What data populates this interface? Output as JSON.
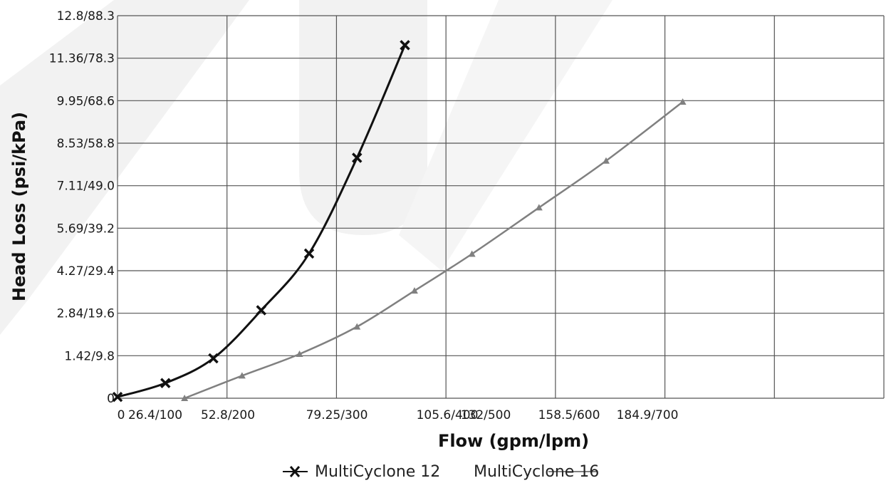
{
  "chart_data": {
    "type": "line",
    "xlabel": "Flow (gpm/lpm)",
    "ylabel": "Head Loss (psi/kPa)",
    "x_tick_labels": [
      "0",
      "26.4/100",
      "52.8/200",
      "79.25/300",
      "105.6/400",
      "132/500",
      "158.5/600",
      "184.9/700"
    ],
    "y_tick_labels": [
      "0",
      "1.42/9.8",
      "2.84/19.6",
      "4.27/29.4",
      "5.69/39.2",
      "7.11/49.0",
      "8.53/58.8",
      "9.95/68.6",
      "11.36/78.3",
      "12.8/88.3"
    ],
    "xlim": [
      0,
      800
    ],
    "ylim": [
      0,
      88.3
    ],
    "x_unit": "lpm",
    "y_unit": "kPa",
    "grid": true,
    "legend_position": "bottom",
    "series": [
      {
        "name": "MultiCyclone 12",
        "color": "#111111",
        "marker": "x",
        "x": [
          0,
          50,
          100,
          150,
          200,
          250,
          300
        ],
        "y": [
          0.3,
          3.5,
          9.2,
          20.3,
          33.4,
          55.5,
          81.5
        ]
      },
      {
        "name": "MultiCyclone 16",
        "color": "#808080",
        "marker": "triangle",
        "x": [
          70,
          130,
          190,
          250,
          310,
          370,
          440,
          510,
          590
        ],
        "y": [
          0,
          5.2,
          10.2,
          16.5,
          24.8,
          33.3,
          44.0,
          54.8,
          68.4
        ]
      }
    ]
  }
}
